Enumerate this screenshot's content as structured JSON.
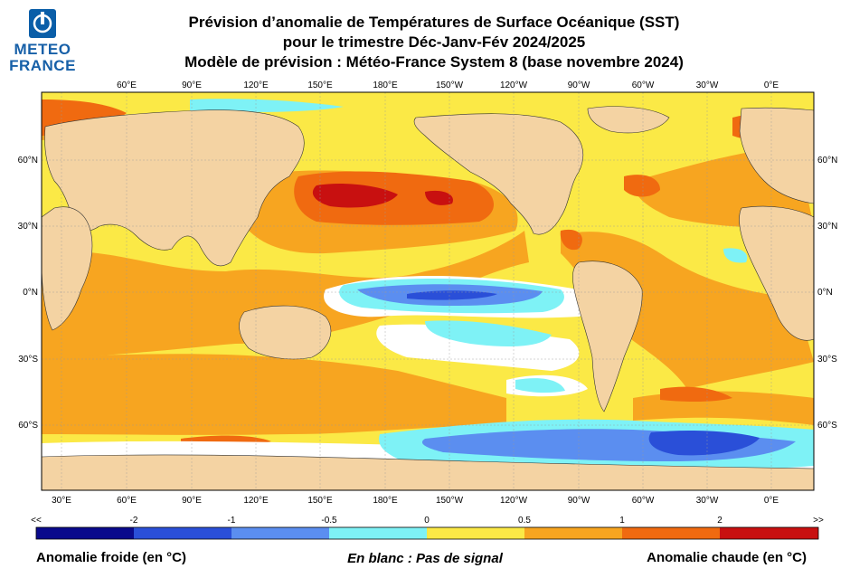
{
  "logo": {
    "line1": "METEO",
    "line2": "FRANCE"
  },
  "title": {
    "line1": "Prévision d’anomalie de Températures de Surface Océanique (SST)",
    "line2": "pour le trimestre Déc-Janv-Fév 2024/2025",
    "line3": "Modèle de prévision : Météo-France System 8 (base novembre 2024)"
  },
  "top_lon_labels": [
    "60°E",
    "90°E",
    "120°E",
    "150°E",
    "180°E",
    "150°W",
    "120°W",
    "90°W",
    "60°W",
    "30°W",
    "0°E"
  ],
  "bottom_lon_labels": [
    "30°E",
    "60°E",
    "90°E",
    "120°E",
    "150°E",
    "180°E",
    "150°W",
    "120°W",
    "90°W",
    "60°W",
    "30°W",
    "0°E"
  ],
  "lat_labels": [
    "60°N",
    "30°N",
    "0°N",
    "30°S",
    "60°S"
  ],
  "colorbar": {
    "tick_labels": [
      "<<",
      "-2",
      "-1",
      "-0.5",
      "0",
      "0.5",
      "1",
      "2",
      ">>"
    ],
    "colors": [
      "#0a0a8c",
      "#2a4fd8",
      "#5b8ef0",
      "#7ef2f6",
      "#fbe946",
      "#f7a520",
      "#f06a10",
      "#c81010"
    ]
  },
  "legend": {
    "left": "Anomalie froide (en °C)",
    "middle": "En blanc : Pas de signal",
    "right": "Anomalie chaude (en °C)"
  },
  "colors": {
    "land": "#f4d3a3",
    "ocean_weak_warm": "#fbe946",
    "warm": "#f7a520",
    "hot": "#f06a10",
    "very_hot": "#c81010",
    "no_signal": "#ffffff",
    "cool": "#7ef2f6",
    "cold": "#5b8ef0",
    "very_cold": "#2a4fd8"
  }
}
